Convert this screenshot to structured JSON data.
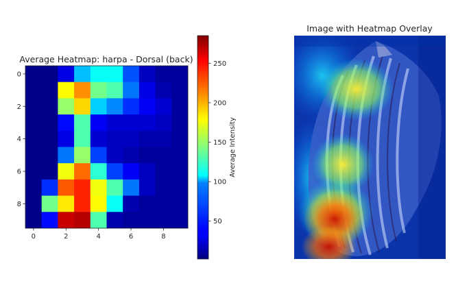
{
  "chart_data": [
    {
      "type": "heatmap",
      "title": "Average Heatmap: harpa - Dorsal (back)",
      "x_ticks": [
        "0",
        "2",
        "4",
        "6",
        "8"
      ],
      "y_ticks": [
        "0",
        "2",
        "4",
        "6",
        "8"
      ],
      "grid": false,
      "colormap": "jet",
      "colorbar": {
        "label": "Average Intensity",
        "range": [
          2,
          285
        ],
        "ticks": [
          "50",
          "100",
          "150",
          "200",
          "250"
        ],
        "tick_values": [
          50,
          100,
          150,
          200,
          250
        ]
      },
      "values": [
        [
          5,
          5,
          30,
          90,
          110,
          110,
          60,
          20,
          10,
          10
        ],
        [
          5,
          5,
          180,
          210,
          140,
          130,
          70,
          30,
          15,
          10
        ],
        [
          5,
          5,
          150,
          190,
          95,
          75,
          50,
          35,
          25,
          10
        ],
        [
          5,
          5,
          40,
          130,
          35,
          25,
          25,
          25,
          20,
          10
        ],
        [
          5,
          5,
          30,
          130,
          25,
          20,
          20,
          15,
          15,
          10
        ],
        [
          5,
          5,
          70,
          150,
          55,
          20,
          15,
          10,
          10,
          10
        ],
        [
          5,
          5,
          175,
          220,
          120,
          55,
          35,
          20,
          10,
          10
        ],
        [
          5,
          50,
          225,
          240,
          175,
          130,
          70,
          20,
          10,
          10
        ],
        [
          5,
          140,
          185,
          240,
          180,
          110,
          15,
          10,
          10,
          10
        ],
        [
          5,
          40,
          265,
          270,
          130,
          15,
          10,
          10,
          10,
          10
        ]
      ]
    },
    {
      "type": "heatmap",
      "title": "Image with Heatmap Overlay",
      "image": "harpa shell photograph with jet heatmap overlay, axes hidden"
    }
  ]
}
